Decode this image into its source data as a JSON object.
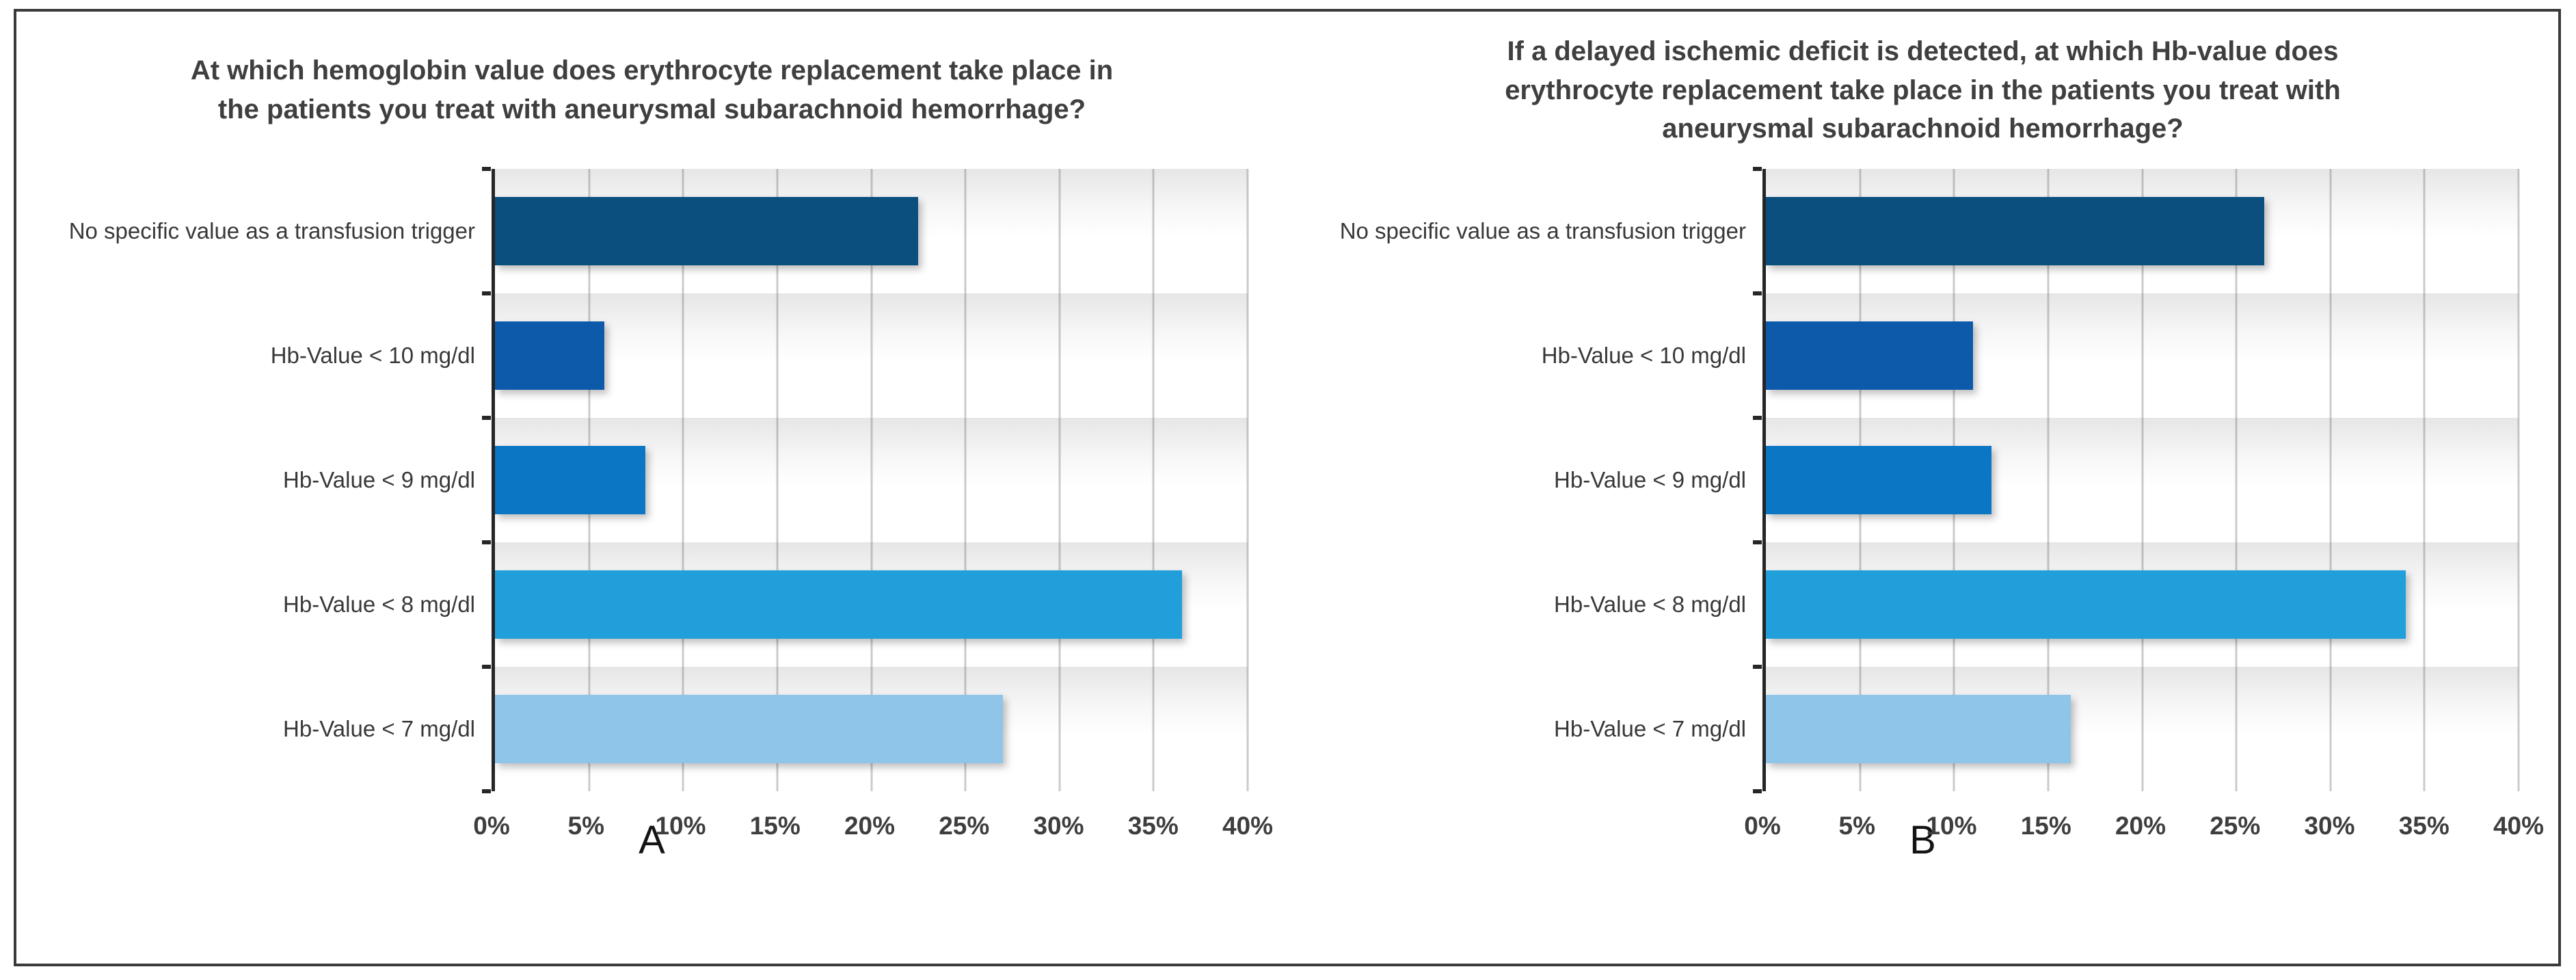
{
  "chart_data": [
    {
      "type": "bar",
      "orientation": "horizontal",
      "panel_label": "A",
      "title": "At which hemoglobin value does erythrocyte replacement take place in\nthe patients you treat with aneurysmal subarachnoid hemorrhage?",
      "categories": [
        "No specific value as a transfusion trigger",
        "Hb-Value < 10 mg/dl",
        "Hb-Value < 9 mg/dl",
        "Hb-Value < 8 mg/dl",
        "Hb-Value < 7 mg/dl"
      ],
      "values": [
        22.5,
        5.8,
        8,
        36.5,
        27
      ],
      "unit": "%",
      "xlim": [
        0,
        40
      ],
      "x_tick_labels": [
        "0%",
        "5%",
        "10%",
        "15%",
        "20%",
        "25%",
        "30%",
        "35%",
        "40%"
      ],
      "bar_colors": [
        "#0b4f7e",
        "#0d5aab",
        "#0a76c4",
        "#219fdb",
        "#8ec5e9"
      ],
      "grid": "vertical",
      "legend": "none"
    },
    {
      "type": "bar",
      "orientation": "horizontal",
      "panel_label": "B",
      "title": "If a delayed ischemic deficit is detected, at which Hb-value does\nerythrocyte replacement take place in the patients you treat with\naneurysmal subarachnoid hemorrhage?",
      "categories": [
        "No specific value as a transfusion trigger",
        "Hb-Value < 10 mg/dl",
        "Hb-Value < 9 mg/dl",
        "Hb-Value < 8 mg/dl",
        "Hb-Value < 7 mg/dl"
      ],
      "values": [
        26.5,
        11,
        12,
        34,
        16.2
      ],
      "unit": "%",
      "xlim": [
        0,
        40
      ],
      "x_tick_labels": [
        "0%",
        "5%",
        "10%",
        "15%",
        "20%",
        "25%",
        "30%",
        "35%",
        "40%"
      ],
      "bar_colors": [
        "#0b4f7e",
        "#0d5aab",
        "#0a76c4",
        "#219fdb",
        "#8ec5e9"
      ],
      "grid": "vertical",
      "legend": "none"
    }
  ],
  "style_colors": {
    "frame_border": "#3a3a3a",
    "axis": "#262626",
    "gridline": "#cbcbcb",
    "title_text": "#3f3f3f",
    "label_text": "#383838"
  }
}
